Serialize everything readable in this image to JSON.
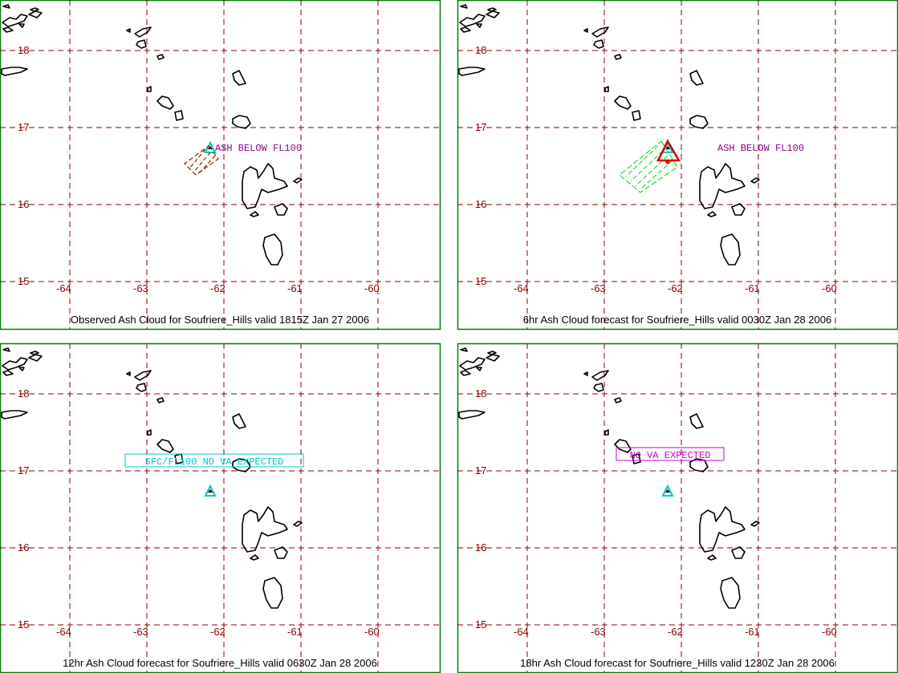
{
  "colors": {
    "frame": "#008000",
    "grid": "#8b0000",
    "volcano": "#00c8c8",
    "obs_ash": "#8b2500",
    "fcst_ash": "#22dd22",
    "fcst_outline": "#dd0000",
    "label_purple": "#8b008b",
    "label_cyan": "#00c8c8",
    "label_magenta": "#cc00cc"
  },
  "axes": {
    "lat_labels": [
      "18",
      "17",
      "16",
      "15"
    ],
    "lon_labels": [
      "-64",
      "-63",
      "-62",
      "-61",
      "-60"
    ]
  },
  "panels": [
    {
      "caption": "Observed Ash Cloud for Soufriere_Hills valid 1815Z Jan 27 2006",
      "ash_label": "ASH BELOW FL100",
      "ash_type": "observed"
    },
    {
      "caption": "6hr Ash Cloud forecast for Soufriere_Hills valid 0030Z Jan 28 2006",
      "ash_label": "ASH BELOW FL100",
      "ash_type": "forecast"
    },
    {
      "caption": "12hr Ash Cloud forecast for Soufriere_Hills valid 0630Z Jan 28 2006",
      "ash_label": "SFC/FL100 NO VA EXPECTED",
      "ash_type": "none"
    },
    {
      "caption": "18hr Ash Cloud forecast for Soufriere_Hills valid 1230Z Jan 28 2006",
      "ash_label": "NO VA EXPECTED",
      "ash_type": "none"
    }
  ]
}
